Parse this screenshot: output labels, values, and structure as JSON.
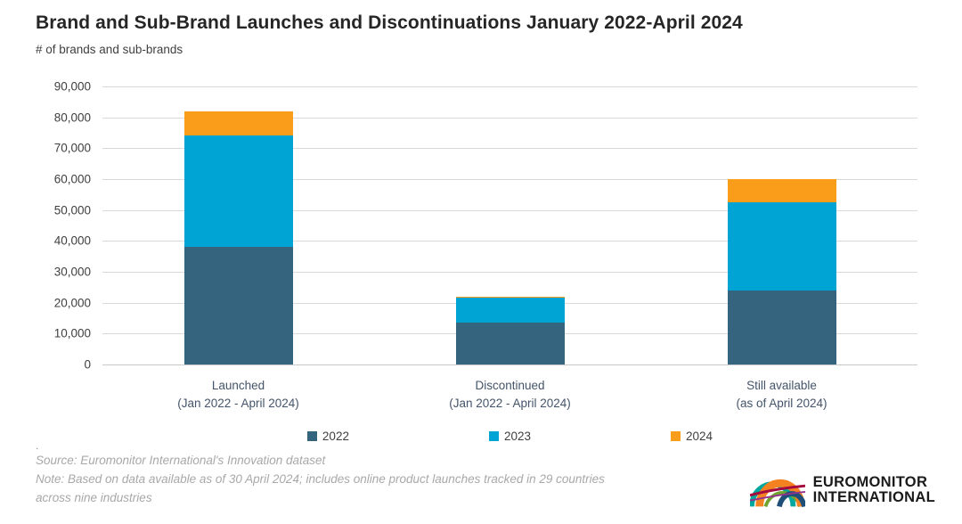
{
  "header": {
    "title": "Brand and Sub-Brand Launches and Discontinuations January 2022-April 2024",
    "subtitle": "# of brands and sub-brands"
  },
  "chart_data": {
    "type": "bar",
    "stacked": true,
    "title": "Brand and Sub-Brand Launches and Discontinuations January 2022-April 2024",
    "ylabel": "# of brands and sub-brands",
    "categories": [
      {
        "line1": "Launched",
        "line2": "(Jan 2022 - April 2024)"
      },
      {
        "line1": "Discontinued",
        "line2": "(Jan 2022 - April 2024)"
      },
      {
        "line1": "Still available",
        "line2": "(as of April 2024)"
      }
    ],
    "series": [
      {
        "name": "2022",
        "color": "#35647E",
        "values": [
          38000,
          13500,
          24000
        ]
      },
      {
        "name": "2023",
        "color": "#00A4D4",
        "values": [
          36000,
          8000,
          28500
        ]
      },
      {
        "name": "2024",
        "color": "#F99D1B",
        "values": [
          8000,
          500,
          7500
        ]
      }
    ],
    "ylim": [
      0,
      90000
    ],
    "ytick_step": 10000,
    "ytick_labels": [
      "0",
      "10,000",
      "20,000",
      "30,000",
      "40,000",
      "50,000",
      "60,000",
      "70,000",
      "80,000",
      "90,000"
    ],
    "grid": true,
    "legend_position": "bottom",
    "gridline_color": "#D9D9D9"
  },
  "footer": {
    "dot": ".",
    "source": "Source: Euromonitor International's Innovation dataset",
    "note": "Note: Based on data available as of 30 April 2024; includes online product launches tracked in 29 countries across nine industries"
  },
  "logo": {
    "line1": "EUROMONITOR",
    "line2": "INTERNATIONAL",
    "colors": {
      "orange": "#F58220",
      "teal": "#00A79D",
      "green": "#71A330",
      "crimson": "#A6093D",
      "navy": "#1F4E79",
      "magenta": "#93328E"
    }
  }
}
